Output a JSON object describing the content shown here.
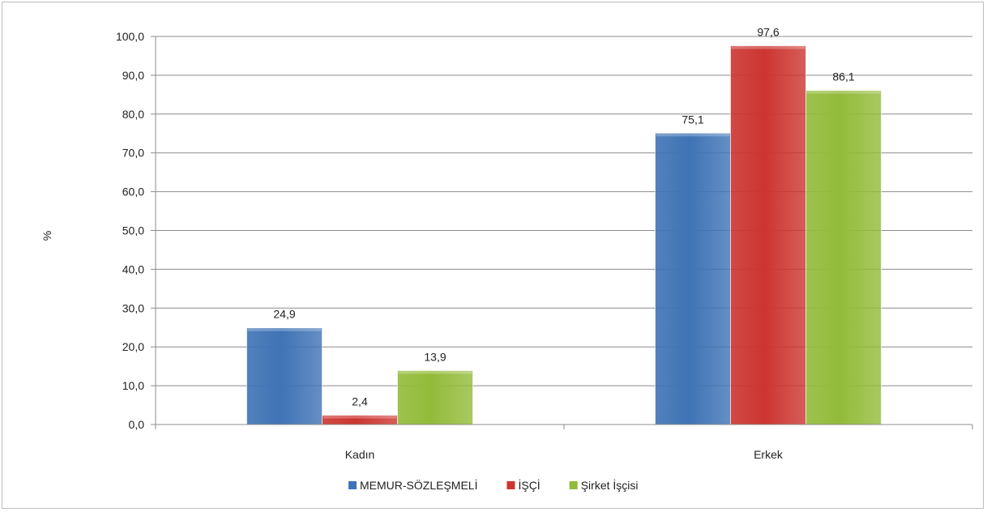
{
  "chart_data": {
    "type": "bar",
    "categories": [
      "Kadın",
      "Erkek"
    ],
    "series": [
      {
        "name": "MEMUR-SÖZLEŞMELİ",
        "color": "#3f73b5",
        "values": [
          24.9,
          75.1
        ],
        "labels": [
          "24,9",
          "75,1"
        ]
      },
      {
        "name": "İŞÇİ",
        "color": "#cc3530",
        "values": [
          2.4,
          97.6
        ],
        "labels": [
          "2,4",
          "97,6"
        ]
      },
      {
        "name": "Şirket İşçisi",
        "color": "#93bb3a",
        "values": [
          13.9,
          86.1
        ],
        "labels": [
          "13,9",
          "86,1"
        ]
      }
    ],
    "ylabel": "%",
    "xlabel": "",
    "title": "",
    "ylim": [
      0,
      100
    ],
    "yticks": [
      0,
      10,
      20,
      30,
      40,
      50,
      60,
      70,
      80,
      90,
      100
    ],
    "ytick_labels": [
      "0,0",
      "10,0",
      "20,0",
      "30,0",
      "40,0",
      "50,0",
      "60,0",
      "70,0",
      "80,0",
      "90,0",
      "100,0"
    ],
    "grid": true,
    "legend_position": "bottom"
  }
}
